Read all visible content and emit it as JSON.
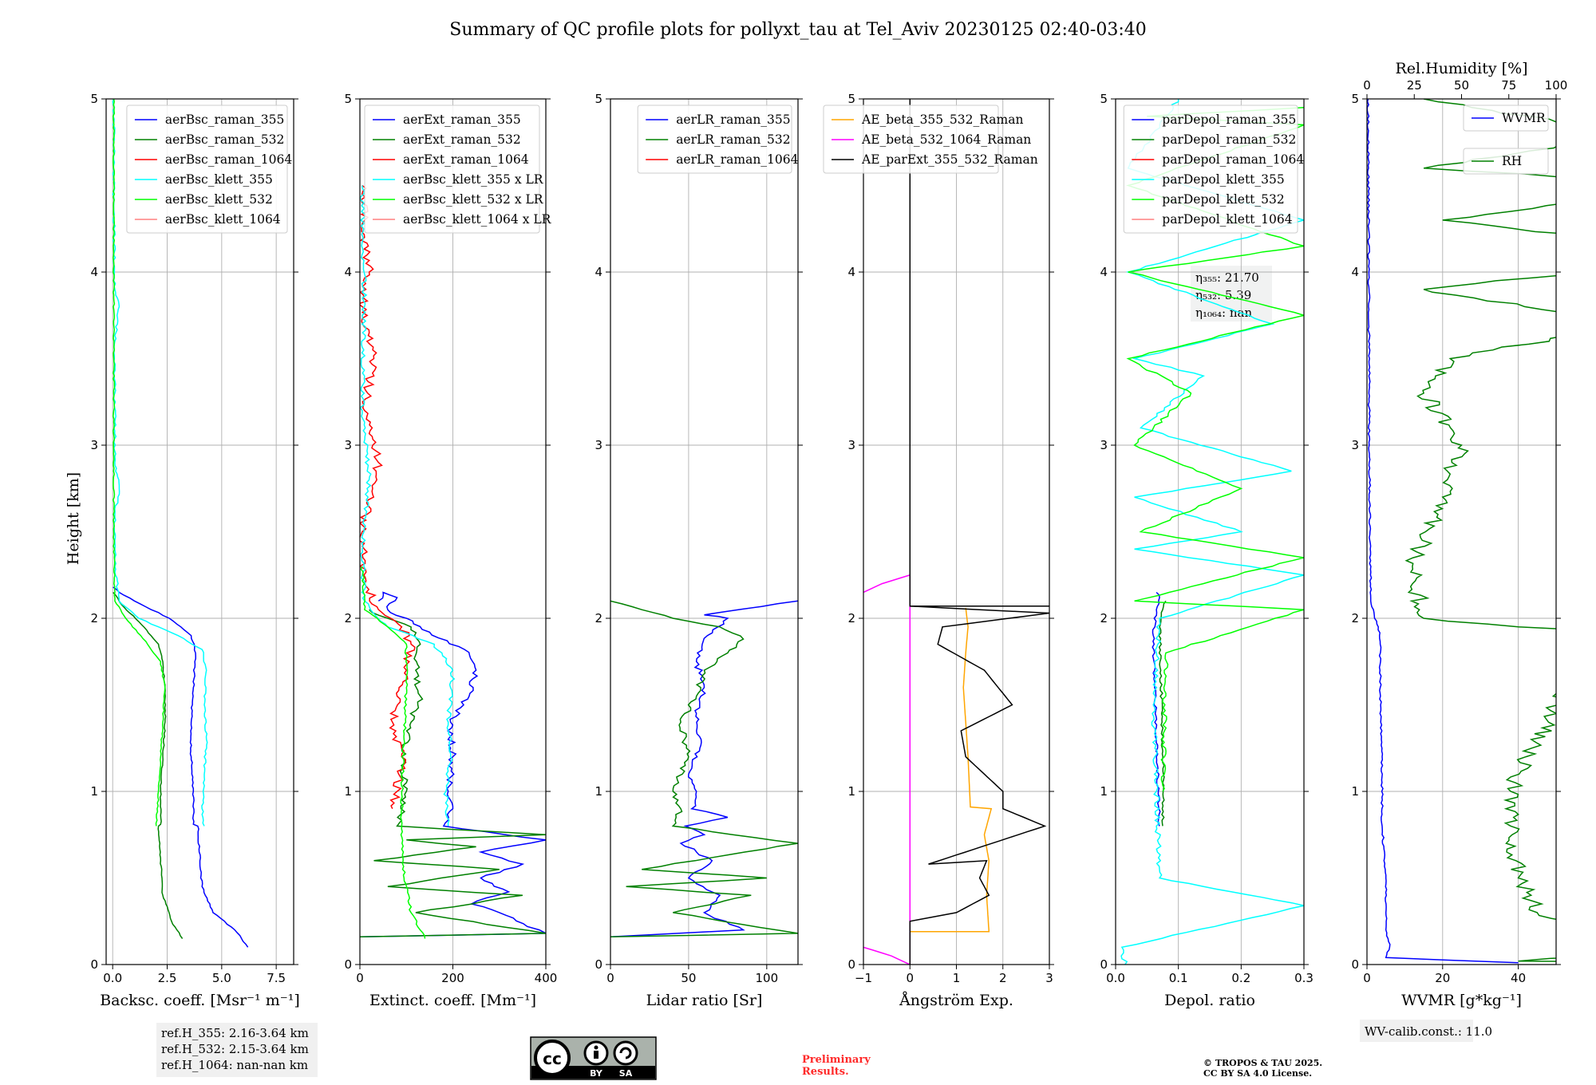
{
  "figure": {
    "title": "Summary of QC profile plots for pollyxt_tau at Tel_Aviv 20230125 02:40-03:40",
    "ylabel": "Height [km]",
    "ref_heights": [
      "ref.H_355: 2.16-3.64 km",
      "ref.H_532: 2.15-3.64 km",
      "ref.H_1064: nan-nan km"
    ],
    "wv_calib": "WV-calib.const.: 11.0",
    "preliminary": [
      "Preliminary",
      "Results."
    ],
    "copyright": [
      "© TROPOS & TAU 2025.",
      "CC BY SA 4.0 License."
    ],
    "license_badge": {
      "cc": "cc",
      "by": "BY",
      "sa": "SA"
    },
    "colors": {
      "blue": "#0000ff",
      "green": "#008000",
      "red": "#ff0000",
      "cyan": "#00ffff",
      "lime": "#00ff00",
      "pink": "#ff8080",
      "orange": "#ffa500",
      "magenta": "#ff00ff",
      "black": "#000000",
      "grid": "#b0b0b0"
    }
  },
  "chart_data": [
    {
      "type": "line",
      "xlabel": "Backsc. coeff. [Msr⁻¹ m⁻¹]",
      "ylabel": "Height [km]",
      "xlim": [
        -0.3,
        8.3
      ],
      "ylim": [
        0,
        5
      ],
      "xticks": [
        0,
        2.5,
        5,
        7.5
      ],
      "xticklabels": [
        "0.0",
        "2.5",
        "5.0",
        "7.5"
      ],
      "yticks": [
        0,
        1,
        2,
        3,
        4,
        5
      ],
      "grid": true,
      "legend": "upper-right",
      "series": [
        {
          "name": "aerBsc_raman_355",
          "color": "#0000ff",
          "noise": 0.04,
          "x": [
            6.2,
            5.6,
            4.6,
            4.1,
            4.0,
            3.9,
            3.7,
            3.7,
            3.6,
            3.6,
            3.7,
            3.8,
            3.6,
            2.6,
            1.0,
            0.3,
            0.02
          ],
          "y": [
            0.1,
            0.2,
            0.3,
            0.45,
            0.6,
            0.8,
            0.81,
            1.0,
            1.2,
            1.4,
            1.6,
            1.8,
            1.9,
            2.0,
            2.1,
            2.15,
            2.18
          ]
        },
        {
          "name": "aerBsc_raman_532",
          "color": "#008000",
          "noise": 0.03,
          "x": [
            3.2,
            2.7,
            2.3,
            2.2,
            2.1,
            2.2,
            2.2,
            2.3,
            2.4,
            2.4,
            2.3,
            2.1,
            1.2,
            0.4,
            0.02
          ],
          "y": [
            0.15,
            0.25,
            0.4,
            0.6,
            0.8,
            0.81,
            1.0,
            1.2,
            1.4,
            1.6,
            1.75,
            1.85,
            1.98,
            2.08,
            2.15
          ]
        },
        {
          "name": "aerBsc_raman_1064",
          "color": "#ff0000",
          "noise": 0.0,
          "x": [],
          "y": []
        },
        {
          "name": "aerBsc_klett_355",
          "color": "#00ffff",
          "noise": 0.05,
          "x": [
            4.2,
            4.1,
            4.2,
            4.3,
            4.2,
            4.3,
            4.1,
            3.0,
            1.2,
            0.3,
            0.1,
            0.1,
            0.3,
            0.1,
            0.1,
            0.1,
            0.3,
            0.1,
            0.05,
            0.05
          ],
          "y": [
            0.8,
            0.9,
            1.1,
            1.3,
            1.5,
            1.7,
            1.82,
            1.9,
            2.0,
            2.1,
            2.3,
            2.6,
            2.75,
            2.9,
            3.3,
            3.6,
            3.8,
            3.9,
            4.4,
            5.0
          ]
        },
        {
          "name": "aerBsc_klett_532",
          "color": "#00ff00",
          "noise": 0.03,
          "x": [
            2.0,
            2.1,
            2.2,
            2.3,
            2.4,
            2.2,
            1.6,
            0.6,
            0.1,
            0.05,
            0.05,
            0.05
          ],
          "y": [
            0.8,
            1.0,
            1.2,
            1.4,
            1.6,
            1.75,
            1.85,
            2.0,
            2.1,
            2.5,
            3.5,
            5.0
          ]
        },
        {
          "name": "aerBsc_klett_1064",
          "color": "#ff8080",
          "noise": 0.0,
          "x": [],
          "y": []
        }
      ]
    },
    {
      "type": "line",
      "xlabel": "Extinct. coeff. [Mm⁻¹]",
      "xlim": [
        0,
        400
      ],
      "ylim": [
        0,
        5
      ],
      "xticks": [
        0,
        200,
        400
      ],
      "xticklabels": [
        "0",
        "200",
        "400"
      ],
      "yticks": [
        0,
        1,
        2,
        3,
        4,
        5
      ],
      "grid": true,
      "legend": "upper-right",
      "series": [
        {
          "name": "aerExt_raman_355",
          "color": "#0000ff",
          "noise": 8,
          "x": [
            0,
            400,
            360,
            300,
            240,
            320,
            260,
            350,
            260,
            400,
            180,
            200,
            190,
            200,
            195,
            235,
            250,
            225,
            150,
            100,
            60,
            80,
            50,
            40
          ],
          "y": [
            0.16,
            0.18,
            0.22,
            0.3,
            0.35,
            0.42,
            0.5,
            0.58,
            0.65,
            0.72,
            0.8,
            0.9,
            1.0,
            1.2,
            1.4,
            1.55,
            1.7,
            1.82,
            1.92,
            2.0,
            2.05,
            2.12,
            2.15,
            2.1
          ]
        },
        {
          "name": "aerExt_raman_532",
          "color": "#008000",
          "noise": 8,
          "x": [
            0,
            400,
            120,
            350,
            60,
            300,
            30,
            250,
            100,
            400,
            80,
            100,
            90,
            110,
            130,
            120,
            130,
            110,
            60,
            20
          ],
          "y": [
            0.16,
            0.18,
            0.3,
            0.4,
            0.45,
            0.55,
            0.6,
            0.68,
            0.72,
            0.75,
            0.8,
            1.0,
            1.2,
            1.4,
            1.55,
            1.7,
            1.85,
            1.95,
            2.0,
            2.05
          ]
        },
        {
          "name": "aerExt_raman_1064",
          "color": "#ff0000",
          "noise": 10,
          "x": [
            70,
            80,
            90,
            70,
            80,
            100,
            110,
            90,
            40,
            10,
            5,
            40,
            10,
            30,
            5,
            20,
            10,
            5
          ],
          "y": [
            0.9,
            1.0,
            1.2,
            1.4,
            1.55,
            1.7,
            1.85,
            1.95,
            2.05,
            2.2,
            2.5,
            2.9,
            3.2,
            3.5,
            3.8,
            4.0,
            4.2,
            4.5
          ]
        },
        {
          "name": "aerBsc_klett_355 x LR",
          "color": "#00ffff",
          "noise": 5,
          "x": [
            190,
            185,
            195,
            190,
            200,
            160,
            60,
            10,
            5,
            20,
            5,
            10,
            5
          ],
          "y": [
            0.8,
            1.0,
            1.2,
            1.4,
            1.7,
            1.85,
            1.95,
            2.1,
            2.4,
            2.8,
            3.2,
            3.8,
            4.5
          ]
        },
        {
          "name": "aerBsc_klett_532 x LR",
          "color": "#00ff00",
          "noise": 3,
          "x": [
            140,
            110,
            95,
            90,
            90,
            95,
            100,
            100,
            60,
            10,
            5
          ],
          "y": [
            0.15,
            0.3,
            0.5,
            0.8,
            1.0,
            1.3,
            1.6,
            1.85,
            1.95,
            2.05,
            2.3
          ]
        },
        {
          "name": "aerBsc_klett_1064 x LR",
          "color": "#ff8080",
          "noise": 0,
          "x": [],
          "y": []
        }
      ],
      "overlay_text": [
        "η₃₅₅: 21.70",
        "η₅₃₂: 5.39",
        "η₁₀₆₄: nan"
      ]
    },
    {
      "type": "line",
      "xlabel": "Lidar ratio [Sr]",
      "xlim": [
        0,
        120
      ],
      "ylim": [
        0,
        5
      ],
      "xticks": [
        0,
        50,
        100
      ],
      "xticklabels": [
        "0",
        "50",
        "100"
      ],
      "yticks": [
        0,
        1,
        2,
        3,
        4,
        5
      ],
      "grid": true,
      "legend": "upper-right",
      "series": [
        {
          "name": "aerLR_raman_355",
          "color": "#0000ff",
          "noise": 2,
          "x": [
            0,
            85,
            60,
            70,
            50,
            65,
            45,
            60,
            48,
            75,
            52,
            55,
            50,
            58,
            55,
            60,
            55,
            62,
            75,
            60,
            120
          ],
          "y": [
            0.16,
            0.2,
            0.3,
            0.4,
            0.5,
            0.6,
            0.7,
            0.75,
            0.8,
            0.85,
            0.9,
            1.0,
            1.1,
            1.3,
            1.45,
            1.6,
            1.75,
            1.9,
            2.0,
            2.02,
            2.1
          ]
        },
        {
          "name": "aerLR_raman_532",
          "color": "#008000",
          "noise": 2,
          "x": [
            0,
            120,
            40,
            90,
            10,
            100,
            20,
            120,
            40,
            45,
            40,
            50,
            45,
            55,
            60,
            75,
            85,
            70,
            40,
            20,
            0
          ],
          "y": [
            0.16,
            0.18,
            0.3,
            0.4,
            0.45,
            0.5,
            0.55,
            0.7,
            0.8,
            0.9,
            1.0,
            1.2,
            1.4,
            1.55,
            1.7,
            1.8,
            1.88,
            1.95,
            2.0,
            2.05,
            2.1
          ]
        },
        {
          "name": "aerLR_raman_1064",
          "color": "#ff0000",
          "noise": 0,
          "x": [],
          "y": []
        }
      ]
    },
    {
      "type": "line",
      "xlabel": "Ångström Exp.",
      "xlim": [
        -1,
        3
      ],
      "ylim": [
        0,
        5
      ],
      "xticks": [
        -1,
        0,
        1,
        2,
        3
      ],
      "xticklabels": [
        "−1",
        "0",
        "1",
        "2",
        "3"
      ],
      "yticks": [
        0,
        1,
        2,
        3,
        4,
        5
      ],
      "grid": true,
      "legend": "upper-right",
      "series": [
        {
          "name": "AE_beta_355_532_Raman",
          "color": "#ffa500",
          "noise": 0,
          "x": [
            0,
            1.7,
            1.65,
            1.7,
            1.6,
            1.75,
            1.3,
            1.25,
            1.2,
            1.15,
            1.2,
            1.25,
            1.2
          ],
          "y": [
            0.19,
            0.19,
            0.4,
            0.6,
            0.75,
            0.9,
            0.91,
            1.2,
            1.4,
            1.6,
            1.8,
            1.95,
            2.06
          ]
        },
        {
          "name": "AE_beta_532_1064_Raman",
          "color": "#ff00ff",
          "noise": 0,
          "x": [
            -1,
            -0.4,
            0,
            0,
            -0.6,
            -1
          ],
          "y": [
            0.1,
            0.05,
            0,
            2.25,
            2.2,
            2.15
          ]
        },
        {
          "name": "AE_parExt_355_532_Raman",
          "color": "#000000",
          "noise": 0,
          "x": [
            0,
            0,
            1.0,
            1.7,
            1.5,
            1.65,
            0.4,
            2.9,
            2.0,
            2.0,
            1.2,
            1.1,
            2.2,
            1.6,
            0.6,
            0.7,
            3.0,
            0,
            0
          ],
          "y": [
            0,
            0.25,
            0.3,
            0.4,
            0.5,
            0.6,
            0.58,
            0.8,
            0.9,
            1.0,
            1.2,
            1.35,
            1.5,
            1.7,
            1.85,
            1.95,
            2.03,
            2.07,
            5.0
          ]
        }
      ],
      "hline": {
        "x": [
          0,
          3
        ],
        "y": 2.07
      }
    },
    {
      "type": "line",
      "xlabel": "Depol. ratio",
      "xlim": [
        0,
        0.3
      ],
      "ylim": [
        0,
        5
      ],
      "xticks": [
        0,
        0.1,
        0.2,
        0.3
      ],
      "xticklabels": [
        "0.0",
        "0.1",
        "0.2",
        "0.3"
      ],
      "yticks": [
        0,
        1,
        2,
        3,
        4,
        5
      ],
      "grid": true,
      "legend": "upper-right",
      "series": [
        {
          "name": "parDepol_raman_355",
          "color": "#0000ff",
          "noise": 0.002,
          "x": [
            0.07,
            0.068,
            0.065,
            0.062,
            0.06,
            0.065,
            0.07,
            0.065
          ],
          "y": [
            0.8,
            1.0,
            1.3,
            1.6,
            1.9,
            2.05,
            2.12,
            2.15
          ]
        },
        {
          "name": "parDepol_raman_532",
          "color": "#008000",
          "noise": 0.002,
          "x": [
            0.075,
            0.076,
            0.074,
            0.072,
            0.07,
            0.075,
            0.08
          ],
          "y": [
            0.8,
            1.1,
            1.4,
            1.7,
            1.95,
            2.05,
            2.1
          ]
        },
        {
          "name": "parDepol_raman_1064",
          "color": "#ff0000",
          "noise": 0,
          "x": [],
          "y": []
        },
        {
          "name": "parDepol_klett_355",
          "color": "#00ffff",
          "noise": 0.004,
          "x": [
            0.015,
            0.01,
            0.3,
            0.07,
            0.065,
            0.06,
            0.07,
            0.3,
            0.03,
            0.2,
            0.03,
            0.28,
            0.04,
            0.14,
            0.03,
            0.25,
            0.02,
            0.3,
            0.02,
            0.1
          ],
          "y": [
            0,
            0.1,
            0.34,
            0.5,
            1.0,
            1.5,
            2.0,
            2.25,
            2.4,
            2.5,
            2.7,
            2.85,
            3.1,
            3.4,
            3.5,
            3.7,
            4.0,
            4.3,
            4.6,
            5.0
          ]
        },
        {
          "name": "parDepol_klett_532",
          "color": "#00ff00",
          "noise": 0.004,
          "x": [
            0.075,
            0.08,
            0.3,
            0.03,
            0.3,
            0.04,
            0.2,
            0.03,
            0.12,
            0.02,
            0.3,
            0.02,
            0.3,
            0.02,
            0.3,
            0.05,
            0.3
          ],
          "y": [
            1.0,
            1.8,
            2.05,
            2.1,
            2.35,
            2.5,
            2.75,
            3.0,
            3.3,
            3.5,
            3.75,
            4.0,
            4.15,
            4.5,
            4.85,
            4.9,
            4.95
          ]
        },
        {
          "name": "parDepol_klett_1064",
          "color": "#ff8080",
          "noise": 0,
          "x": [],
          "y": []
        }
      ]
    },
    {
      "type": "line",
      "xlabel": "WVMR [g*kg⁻¹]",
      "xlim": [
        0,
        50
      ],
      "ylim": [
        0,
        5
      ],
      "xticks": [
        0,
        20,
        40
      ],
      "xticklabels": [
        "0",
        "20",
        "40"
      ],
      "yticks": [
        0,
        1,
        2,
        3,
        4,
        5
      ],
      "grid": true,
      "legend": "upper-right",
      "top_axis": {
        "label": "Rel.Humidity [%]",
        "xlim": [
          0,
          100
        ],
        "xticks": [
          0,
          25,
          50,
          75,
          100
        ],
        "xticklabels": [
          "0",
          "25",
          "50",
          "75",
          "100"
        ]
      },
      "series": [
        {
          "name": "WVMR",
          "color": "#0000ff",
          "noise": 0.25,
          "x": [
            40,
            5,
            6,
            5,
            5,
            4,
            4,
            3.5,
            3.5,
            3,
            2,
            1,
            0.8,
            0.6,
            0.5,
            0.3
          ],
          "y": [
            0.01,
            0.04,
            0.1,
            0.2,
            0.5,
            0.8,
            1.2,
            1.6,
            1.85,
            1.95,
            2.0,
            2.1,
            2.5,
            3.0,
            4.0,
            5.0
          ]
        },
        {
          "name": "RH",
          "color": "#008000",
          "noise": 2.5,
          "x": [
            100,
            40,
            60,
            58,
            45,
            40,
            38,
            38,
            42,
            48,
            52,
            60,
            58,
            55,
            40,
            15,
            12,
            20,
            25,
            15,
            22,
            70,
            15,
            100,
            20,
            90,
            15,
            70,
            15
          ],
          "y": [
            0.01,
            0.02,
            0.05,
            0.2,
            0.3,
            0.5,
            0.8,
            1.0,
            1.2,
            1.4,
            1.6,
            1.75,
            1.9,
            1.93,
            1.95,
            2.0,
            2.3,
            2.7,
            3.0,
            3.3,
            3.5,
            3.7,
            3.9,
            4.1,
            4.3,
            4.5,
            4.6,
            4.8,
            5.0
          ]
        }
      ]
    }
  ]
}
